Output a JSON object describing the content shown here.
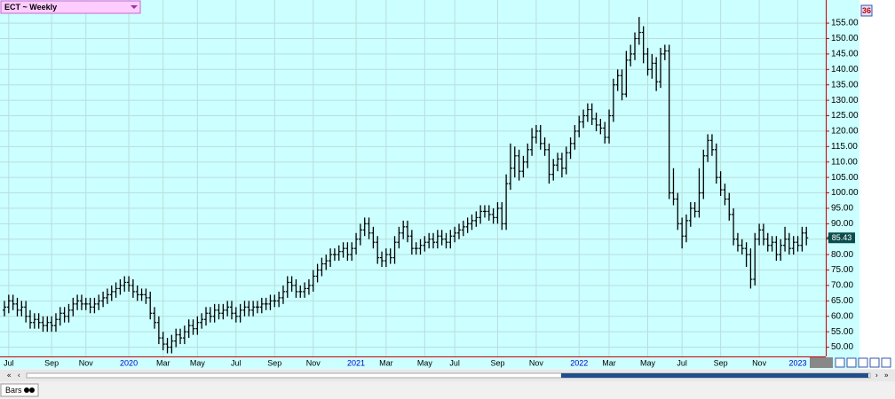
{
  "header": {
    "symbol_label": "ECT ~ Weekly",
    "corner_badge": "36"
  },
  "footer": {
    "tab": "Bars"
  },
  "chart_data": {
    "type": "ohlc",
    "last_price_box": true,
    "grid": true,
    "ylim": [
      47,
      162.5
    ],
    "yticks": [
      {
        "value": 50,
        "label": "50.00"
      },
      {
        "value": 55,
        "label": "55.00"
      },
      {
        "value": 60,
        "label": "60.00"
      },
      {
        "value": 65,
        "label": "65.00"
      },
      {
        "value": 70,
        "label": "70.00"
      },
      {
        "value": 75,
        "label": "75.00"
      },
      {
        "value": 80,
        "label": "80.00"
      },
      {
        "value": 85,
        "label": "85.00"
      },
      {
        "value": 90,
        "label": "90.00"
      },
      {
        "value": 95,
        "label": "95.00"
      },
      {
        "value": 100,
        "label": "100.00"
      },
      {
        "value": 105,
        "label": "105.00"
      },
      {
        "value": 110,
        "label": "110.00"
      },
      {
        "value": 115,
        "label": "115.00"
      },
      {
        "value": 120,
        "label": "120.00"
      },
      {
        "value": 125,
        "label": "125.00"
      },
      {
        "value": 130,
        "label": "130.00"
      },
      {
        "value": 135,
        "label": "135.00"
      },
      {
        "value": 140,
        "label": "140.00"
      },
      {
        "value": 145,
        "label": "145.00"
      },
      {
        "value": 150,
        "label": "150.00"
      },
      {
        "value": 155,
        "label": "155.00"
      }
    ],
    "categories": [
      null,
      "Jul",
      null,
      null,
      null,
      null,
      null,
      null,
      null,
      null,
      null,
      "Sep",
      null,
      null,
      null,
      null,
      null,
      null,
      null,
      "Nov",
      null,
      null,
      null,
      null,
      null,
      null,
      null,
      null,
      null,
      "2020",
      null,
      null,
      null,
      null,
      null,
      null,
      null,
      "Mar",
      null,
      null,
      null,
      null,
      null,
      null,
      null,
      "May",
      null,
      null,
      null,
      null,
      null,
      null,
      null,
      null,
      "Jul",
      null,
      null,
      null,
      null,
      null,
      null,
      null,
      null,
      "Sep",
      null,
      null,
      null,
      null,
      null,
      null,
      null,
      null,
      "Nov",
      null,
      null,
      null,
      null,
      null,
      null,
      null,
      null,
      null,
      "2021",
      null,
      null,
      null,
      null,
      null,
      null,
      "Mar",
      null,
      null,
      null,
      null,
      null,
      null,
      null,
      null,
      "May",
      null,
      null,
      null,
      null,
      null,
      null,
      "Jul",
      null,
      null,
      null,
      null,
      null,
      null,
      null,
      null,
      null,
      "Sep",
      null,
      null,
      null,
      null,
      null,
      null,
      null,
      null,
      "Nov",
      null,
      null,
      null,
      null,
      null,
      null,
      null,
      null,
      null,
      "2022",
      null,
      null,
      null,
      null,
      null,
      null,
      "Mar",
      null,
      null,
      null,
      null,
      null,
      null,
      null,
      null,
      "May",
      null,
      null,
      null,
      null,
      null,
      null,
      null,
      "Jul",
      null,
      null,
      null,
      null,
      null,
      null,
      null,
      null,
      "Sep",
      null,
      null,
      null,
      null,
      null,
      null,
      null,
      null,
      "Nov",
      null,
      null,
      null,
      null,
      null,
      null,
      null,
      null,
      "2023",
      null,
      null
    ],
    "open": [
      62,
      63,
      65,
      64,
      62,
      63,
      60,
      58,
      59,
      58,
      57,
      58,
      57,
      59,
      61,
      60,
      62,
      64,
      65,
      64,
      64,
      63,
      64,
      65,
      66,
      67,
      68,
      69,
      70,
      71,
      70,
      68,
      67,
      67,
      66,
      61,
      58,
      53,
      51,
      50,
      52,
      54,
      53,
      55,
      57,
      56,
      58,
      59,
      61,
      60,
      62,
      61,
      62,
      63,
      61,
      60,
      62,
      63,
      62,
      63,
      63,
      64,
      64,
      65,
      65,
      66,
      68,
      71,
      70,
      68,
      68,
      69,
      70,
      73,
      75,
      77,
      78,
      80,
      80,
      81,
      82,
      80,
      82,
      85,
      88,
      90,
      87,
      84,
      79,
      78,
      80,
      79,
      84,
      87,
      89,
      86,
      82,
      82,
      83,
      84,
      85,
      84,
      86,
      85,
      84,
      86,
      87,
      88,
      89,
      90,
      91,
      92,
      94,
      94,
      93,
      92,
      95,
      90,
      103,
      108,
      112,
      107,
      110,
      114,
      118,
      120,
      116,
      114,
      106,
      109,
      111,
      108,
      113,
      116,
      120,
      123,
      125,
      127,
      124,
      122,
      121,
      118,
      125,
      135,
      138,
      132,
      143,
      145,
      150,
      152,
      145,
      140,
      142,
      136,
      145,
      146,
      100,
      98,
      90,
      86,
      91,
      95,
      94,
      100,
      112,
      117,
      114,
      105,
      101,
      98,
      93,
      85,
      83,
      82,
      80,
      72,
      85,
      88,
      85,
      83,
      84,
      80,
      83,
      85,
      82,
      84,
      83,
      87
    ],
    "high": [
      65,
      67,
      67,
      66,
      65,
      65,
      62,
      61,
      61,
      60,
      60,
      60,
      61,
      63,
      63,
      64,
      66,
      67,
      67,
      66,
      66,
      66,
      67,
      68,
      69,
      70,
      71,
      72,
      73,
      73,
      72,
      70,
      69,
      69,
      68,
      63,
      60,
      55,
      53,
      54,
      56,
      56,
      57,
      59,
      59,
      60,
      61,
      63,
      63,
      64,
      64,
      64,
      65,
      65,
      63,
      64,
      65,
      65,
      65,
      65,
      66,
      66,
      67,
      67,
      68,
      70,
      73,
      73,
      72,
      70,
      71,
      72,
      75,
      77,
      79,
      80,
      82,
      82,
      83,
      84,
      84,
      84,
      87,
      90,
      92,
      92,
      89,
      86,
      81,
      82,
      82,
      86,
      89,
      91,
      91,
      88,
      84,
      85,
      86,
      87,
      87,
      88,
      88,
      87,
      88,
      89,
      90,
      91,
      92,
      93,
      94,
      96,
      96,
      96,
      95,
      97,
      97,
      106,
      116,
      115,
      114,
      112,
      116,
      121,
      122,
      122,
      118,
      116,
      111,
      113,
      113,
      115,
      118,
      122,
      125,
      127,
      129,
      129,
      126,
      124,
      123,
      127,
      137,
      140,
      140,
      146,
      148,
      152,
      157,
      154,
      147,
      145,
      144,
      147,
      148,
      148,
      108,
      100,
      92,
      93,
      97,
      97,
      108,
      114,
      119,
      119,
      116,
      107,
      103,
      100,
      95,
      87,
      85,
      84,
      82,
      87,
      90,
      90,
      87,
      86,
      86,
      85,
      89,
      87,
      86,
      86,
      89,
      89
    ],
    "low": [
      60,
      61,
      62,
      60,
      60,
      58,
      56,
      56,
      56,
      55,
      55,
      55,
      55,
      57,
      58,
      58,
      60,
      62,
      62,
      62,
      61,
      61,
      62,
      63,
      64,
      65,
      66,
      67,
      68,
      68,
      66,
      65,
      65,
      64,
      59,
      56,
      51,
      49,
      48,
      48,
      50,
      51,
      51,
      53,
      54,
      54,
      56,
      57,
      58,
      58,
      59,
      59,
      60,
      59,
      58,
      58,
      60,
      60,
      60,
      61,
      61,
      62,
      62,
      63,
      63,
      64,
      66,
      68,
      66,
      66,
      66,
      67,
      68,
      71,
      73,
      75,
      76,
      78,
      78,
      79,
      78,
      78,
      80,
      83,
      86,
      85,
      82,
      77,
      76,
      76,
      77,
      77,
      82,
      85,
      84,
      80,
      80,
      80,
      81,
      82,
      82,
      82,
      83,
      82,
      82,
      84,
      85,
      86,
      87,
      88,
      89,
      90,
      92,
      91,
      90,
      90,
      88,
      88,
      101,
      105,
      104,
      105,
      108,
      112,
      116,
      114,
      112,
      103,
      104,
      107,
      105,
      106,
      111,
      114,
      118,
      121,
      123,
      122,
      120,
      119,
      116,
      116,
      123,
      133,
      130,
      131,
      141,
      143,
      148,
      142,
      138,
      137,
      133,
      134,
      143,
      98,
      96,
      88,
      82,
      84,
      89,
      92,
      92,
      98,
      110,
      112,
      103,
      99,
      96,
      91,
      83,
      81,
      80,
      76,
      69,
      70,
      83,
      83,
      81,
      81,
      78,
      78,
      81,
      80,
      80,
      81,
      81,
      83
    ],
    "close": [
      63,
      65,
      64,
      62,
      63,
      60,
      58,
      59,
      58,
      57,
      58,
      57,
      59,
      61,
      60,
      62,
      64,
      65,
      64,
      64,
      63,
      64,
      65,
      66,
      67,
      68,
      69,
      70,
      71,
      70,
      68,
      67,
      67,
      66,
      61,
      58,
      53,
      51,
      50,
      52,
      54,
      53,
      55,
      57,
      56,
      58,
      59,
      61,
      60,
      62,
      61,
      62,
      63,
      61,
      60,
      62,
      63,
      62,
      63,
      63,
      64,
      64,
      65,
      65,
      66,
      68,
      71,
      70,
      68,
      68,
      69,
      70,
      73,
      75,
      77,
      78,
      80,
      80,
      81,
      82,
      80,
      82,
      85,
      88,
      90,
      87,
      84,
      79,
      78,
      80,
      79,
      84,
      87,
      89,
      86,
      82,
      82,
      83,
      84,
      85,
      84,
      86,
      85,
      84,
      86,
      87,
      88,
      89,
      90,
      91,
      92,
      94,
      94,
      93,
      92,
      95,
      90,
      103,
      108,
      112,
      107,
      110,
      114,
      118,
      120,
      116,
      114,
      106,
      109,
      111,
      108,
      113,
      116,
      120,
      123,
      125,
      127,
      124,
      122,
      121,
      118,
      125,
      135,
      138,
      132,
      143,
      145,
      150,
      152,
      145,
      140,
      142,
      136,
      145,
      146,
      100,
      98,
      90,
      86,
      91,
      95,
      94,
      100,
      112,
      117,
      114,
      105,
      101,
      98,
      93,
      85,
      83,
      82,
      80,
      72,
      85,
      88,
      85,
      83,
      84,
      80,
      83,
      85,
      82,
      84,
      83,
      87,
      85.43
    ]
  }
}
